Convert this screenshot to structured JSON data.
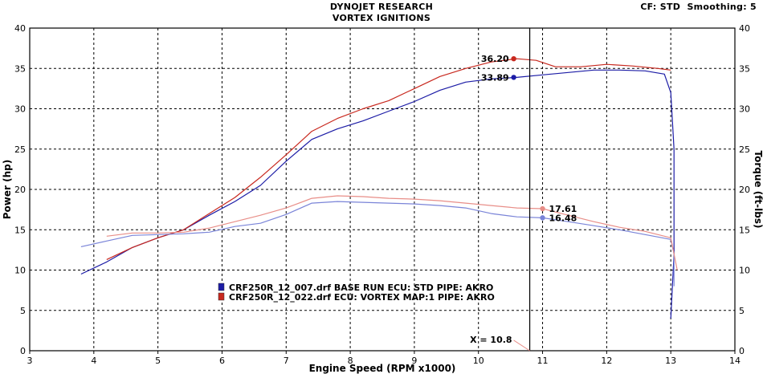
{
  "header": {
    "title_line1": "DYNOJET RESEARCH",
    "title_line2": "VORTEX IGNITIONS",
    "settings": "CF: STD  Smoothing: 5"
  },
  "colors": {
    "run1": "#1c1ca6",
    "run2": "#c8281e",
    "run1_torque": "#7a84d8",
    "run2_torque": "#e88e88",
    "cursor": "#000000",
    "grid": "#000000"
  },
  "chart_data": {
    "type": "line",
    "title": "DYNOJET RESEARCH\nVORTEX IGNITIONS",
    "xlabel": "Engine Speed (RPM x1000)",
    "ylabel_left": "Power (hp)",
    "ylabel_right": "Torque (ft-lbs)",
    "xlim": [
      3,
      14
    ],
    "ylim_left": [
      0,
      40
    ],
    "ylim_right": [
      0,
      40
    ],
    "x_ticks": [
      "3",
      "4",
      "5",
      "6",
      "7",
      "8",
      "9",
      "10",
      "11",
      "12",
      "13",
      "14"
    ],
    "y_ticks": [
      "0",
      "5",
      "10",
      "15",
      "20",
      "25",
      "30",
      "35",
      "40"
    ],
    "grid": true,
    "cursor": {
      "x": 10.8,
      "label": "X = 10.8"
    },
    "legend": [
      {
        "series": "run1",
        "text": "CRF250R_12_007.drf BASE RUN ECU: STD PIPE: AKRO"
      },
      {
        "series": "run2",
        "text": "CRF250R_12_022.drf  ECU: VORTEX MAP:1 PIPE: AKRO"
      }
    ],
    "series": [
      {
        "key": "run1_power",
        "color_key": "run1",
        "axis": "left",
        "x": [
          3.8,
          4.2,
          4.6,
          5.0,
          5.4,
          5.8,
          6.2,
          6.6,
          7.0,
          7.4,
          7.8,
          8.2,
          8.6,
          9.0,
          9.4,
          9.8,
          10.2,
          10.6,
          11.0,
          11.4,
          11.8,
          12.2,
          12.6,
          12.9,
          13.0,
          13.05,
          13.05,
          13.0
        ],
        "y": [
          9.5,
          11.0,
          12.8,
          14.0,
          15.0,
          16.8,
          18.5,
          20.5,
          23.5,
          26.2,
          27.5,
          28.5,
          29.7,
          30.9,
          32.3,
          33.3,
          33.7,
          33.89,
          34.2,
          34.5,
          34.8,
          34.8,
          34.7,
          34.3,
          32.0,
          25.0,
          12.0,
          4.0
        ]
      },
      {
        "key": "run2_power",
        "color_key": "run2",
        "axis": "left",
        "x": [
          4.2,
          4.6,
          5.0,
          5.4,
          5.8,
          6.2,
          6.6,
          7.0,
          7.4,
          7.8,
          8.2,
          8.6,
          9.0,
          9.4,
          9.8,
          10.2,
          10.6,
          10.9,
          11.2,
          11.6,
          12.0,
          12.4,
          12.8,
          13.0
        ],
        "y": [
          11.3,
          12.8,
          14.0,
          15.0,
          17.0,
          19.0,
          21.5,
          24.3,
          27.2,
          28.8,
          30.0,
          31.0,
          32.5,
          34.0,
          35.0,
          35.8,
          36.2,
          36.0,
          35.2,
          35.2,
          35.5,
          35.3,
          35.0,
          34.8
        ]
      },
      {
        "key": "run1_torque",
        "color_key": "run1_torque",
        "axis": "right",
        "x": [
          3.8,
          4.2,
          4.6,
          5.0,
          5.4,
          5.8,
          6.2,
          6.6,
          7.0,
          7.4,
          7.8,
          8.2,
          8.6,
          9.0,
          9.4,
          9.8,
          10.2,
          10.6,
          11.0,
          11.4,
          11.8,
          12.2,
          12.6,
          13.0,
          13.05,
          13.05
        ],
        "y": [
          12.9,
          13.6,
          14.3,
          14.4,
          14.5,
          14.7,
          15.4,
          15.8,
          16.9,
          18.3,
          18.5,
          18.4,
          18.3,
          18.2,
          18.0,
          17.7,
          17.0,
          16.6,
          16.48,
          16.0,
          15.5,
          15.0,
          14.4,
          13.8,
          12.0,
          8.0
        ]
      },
      {
        "key": "run2_torque",
        "color_key": "run2_torque",
        "axis": "right",
        "x": [
          4.2,
          4.6,
          5.0,
          5.4,
          5.8,
          6.2,
          6.6,
          7.0,
          7.4,
          7.8,
          8.2,
          8.6,
          9.0,
          9.4,
          9.8,
          10.2,
          10.6,
          11.0,
          11.4,
          11.8,
          12.2,
          12.6,
          13.0,
          13.1
        ],
        "y": [
          14.2,
          14.6,
          14.6,
          14.7,
          15.2,
          16.0,
          16.8,
          17.7,
          18.9,
          19.2,
          19.1,
          18.9,
          18.8,
          18.6,
          18.3,
          18.0,
          17.7,
          17.61,
          16.8,
          16.0,
          15.3,
          14.8,
          14.0,
          10.0
        ]
      }
    ],
    "markers": [
      {
        "series": "run2_power",
        "x": 10.55,
        "y": 36.2,
        "label": "36.20",
        "color_key": "run2",
        "side": "left"
      },
      {
        "series": "run1_power",
        "x": 10.55,
        "y": 33.89,
        "label": "33.89",
        "color_key": "run1",
        "side": "left"
      },
      {
        "series": "run2_torque",
        "x": 11.0,
        "y": 17.61,
        "label": "17.61",
        "color_key": "run2_torque",
        "side": "right"
      },
      {
        "series": "run1_torque",
        "x": 11.0,
        "y": 16.48,
        "label": "16.48",
        "color_key": "run1_torque",
        "side": "right"
      }
    ]
  }
}
